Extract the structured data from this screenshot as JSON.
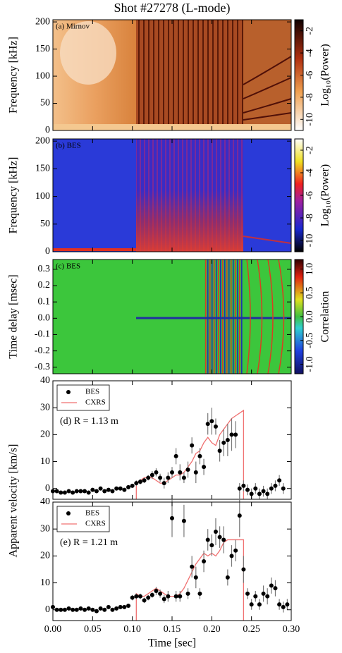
{
  "chart_data": [
    {
      "type": "heatmap",
      "title": "Shot #27278 (L-mode)",
      "label": "(a) Mirnov",
      "ylabel": "Frequency [kHz]",
      "ylim": [
        0,
        204
      ],
      "yticks": [
        0,
        50,
        100,
        150,
        200
      ],
      "colorbar": {
        "label": "Log₁₀(Power)",
        "lim": [
          -11,
          -1
        ],
        "ticks": [
          -10,
          -8,
          -6,
          -4,
          -2
        ]
      }
    },
    {
      "type": "heatmap",
      "label": "(b) BES",
      "ylabel": "Frequency [kHz]",
      "ylim": [
        0,
        204
      ],
      "yticks": [
        0,
        50,
        100,
        150,
        200
      ],
      "colorbar": {
        "label": "Log₁₀(Power)",
        "lim": [
          -11,
          -1
        ],
        "ticks": [
          -10,
          -8,
          -6,
          -4,
          -2
        ]
      }
    },
    {
      "type": "heatmap",
      "label": "(c) BES",
      "ylabel": "Time delay [msec]",
      "ylim": [
        -0.34,
        0.36
      ],
      "yticks": [
        -0.3,
        -0.2,
        -0.1,
        {
          "value": 0,
          "label": "0.0"
        },
        0.1,
        0.2,
        0.3
      ],
      "colorbar": {
        "label": "Correlation",
        "lim": [
          -1.2,
          1.2
        ],
        "ticks": [
          {
            "value": -1,
            "label": "-1.0"
          },
          -0.5,
          {
            "value": 0,
            "label": "0.0"
          },
          0.5,
          {
            "value": 1,
            "label": "1.0"
          }
        ]
      }
    },
    {
      "type": "scatter",
      "ylabel": "Apparent velocity [km/s]",
      "annotation": "(d) R = 1.13 m",
      "ylim": [
        -4,
        40
      ],
      "yticks": [
        0,
        10,
        20,
        30,
        40
      ],
      "series": [
        {
          "name": "BES",
          "color": "#000000",
          "x": [
            0,
            0.005,
            0.01,
            0.015,
            0.02,
            0.025,
            0.03,
            0.035,
            0.04,
            0.045,
            0.05,
            0.055,
            0.06,
            0.065,
            0.07,
            0.075,
            0.08,
            0.085,
            0.09,
            0.095,
            0.1,
            0.105,
            0.11,
            0.115,
            0.12,
            0.125,
            0.13,
            0.135,
            0.14,
            0.145,
            0.15,
            0.155,
            0.16,
            0.165,
            0.17,
            0.175,
            0.18,
            0.185,
            0.19,
            0.195,
            0.2,
            0.205,
            0.21,
            0.215,
            0.22,
            0.225,
            0.23,
            0.235,
            0.24,
            0.245,
            0.25,
            0.255,
            0.26,
            0.265,
            0.27,
            0.275,
            0.28,
            0.285,
            0.29
          ],
          "values": [
            -1,
            -1,
            -1.5,
            -1.5,
            -1,
            -1.5,
            -1,
            -1,
            -1,
            -1.5,
            -0.5,
            -1,
            0,
            -1,
            -0.5,
            -1,
            0,
            0,
            -0.5,
            0.5,
            1,
            2,
            2.5,
            3,
            4,
            5,
            6,
            4,
            2,
            4,
            6,
            12,
            6,
            4,
            7,
            16,
            6,
            12,
            8,
            24,
            25,
            23,
            14,
            17,
            18,
            20,
            20,
            0,
            1,
            -0.5,
            -2,
            0,
            -2,
            -1,
            -2,
            0,
            1,
            3,
            0
          ],
          "errors": [
            0.5,
            0.5,
            0.5,
            0.5,
            0.5,
            0.5,
            0.5,
            0.5,
            0.5,
            0.5,
            0.5,
            0.5,
            0.5,
            0.5,
            0.5,
            0.5,
            0.5,
            0.5,
            0.5,
            0.5,
            0.5,
            1,
            1,
            1,
            1,
            1.5,
            1.5,
            1.5,
            2,
            2,
            2,
            3,
            3,
            2,
            3,
            3,
            4,
            3,
            3,
            4,
            5,
            3,
            4,
            5,
            6,
            6,
            5,
            2,
            2,
            2,
            2,
            2,
            2,
            2,
            2,
            2,
            2,
            2,
            2
          ]
        },
        {
          "name": "CXRS",
          "color": "#f07070",
          "x": [
            0.105,
            0.105,
            0.11,
            0.115,
            0.12,
            0.125,
            0.13,
            0.135,
            0.14,
            0.145,
            0.15,
            0.155,
            0.16,
            0.165,
            0.17,
            0.175,
            0.18,
            0.185,
            0.19,
            0.195,
            0.2,
            0.205,
            0.21,
            0.215,
            0.22,
            0.225,
            0.23,
            0.235,
            0.24,
            0.24
          ],
          "values": [
            -4,
            2,
            3,
            4,
            4,
            4,
            3,
            2,
            2,
            3,
            4,
            5,
            5,
            6,
            8,
            10,
            13,
            14,
            17,
            19,
            17,
            16,
            20,
            22,
            24,
            26,
            27,
            28,
            29,
            -4
          ]
        }
      ]
    },
    {
      "type": "scatter",
      "annotation": "(e) R = 1.21 m",
      "xlabel": "Time [sec]",
      "ylim": [
        -4,
        40
      ],
      "yticks": [
        0,
        10,
        20,
        30,
        40
      ],
      "xlim": [
        0,
        0.3
      ],
      "xticks": [
        {
          "value": 0,
          "label": "0.00"
        },
        {
          "value": 0.05,
          "label": "0.05"
        },
        {
          "value": 0.1,
          "label": "0.10"
        },
        {
          "value": 0.15,
          "label": "0.15"
        },
        {
          "value": 0.2,
          "label": "0.20"
        },
        {
          "value": 0.25,
          "label": "0.25"
        },
        {
          "value": 0.3,
          "label": "0.30"
        }
      ],
      "series": [
        {
          "name": "BES",
          "color": "#000000",
          "x": [
            0,
            0.005,
            0.01,
            0.015,
            0.02,
            0.025,
            0.03,
            0.035,
            0.04,
            0.045,
            0.05,
            0.055,
            0.06,
            0.065,
            0.07,
            0.075,
            0.08,
            0.085,
            0.09,
            0.095,
            0.1,
            0.105,
            0.11,
            0.115,
            0.12,
            0.125,
            0.13,
            0.135,
            0.14,
            0.145,
            0.15,
            0.155,
            0.16,
            0.165,
            0.17,
            0.175,
            0.18,
            0.185,
            0.19,
            0.195,
            0.2,
            0.205,
            0.21,
            0.215,
            0.22,
            0.225,
            0.23,
            0.235,
            0.24,
            0.245,
            0.25,
            0.255,
            0.26,
            0.265,
            0.27,
            0.275,
            0.28,
            0.285,
            0.29,
            0.295
          ],
          "values": [
            1,
            0,
            0,
            0,
            0.5,
            0,
            0,
            0.5,
            0,
            0.5,
            0,
            -0.5,
            0.5,
            0,
            1,
            0,
            0.5,
            1,
            1,
            1.5,
            4.5,
            5,
            5,
            3.5,
            4.5,
            5.5,
            7,
            6,
            4,
            5,
            34,
            5,
            5,
            33,
            6,
            16,
            12,
            6,
            18,
            26,
            24,
            29,
            27,
            26,
            12,
            20,
            22,
            35,
            15,
            6,
            2,
            5,
            2,
            6,
            5,
            9,
            8,
            2,
            1,
            2
          ],
          "errors": [
            0.5,
            0.5,
            0.5,
            0.5,
            0.5,
            0.5,
            0.5,
            0.5,
            0.5,
            0.5,
            0.5,
            0.5,
            0.5,
            0.5,
            0.5,
            0.5,
            0.5,
            0.5,
            0.5,
            0.5,
            1,
            1,
            1,
            1,
            1,
            1,
            1.5,
            1.5,
            1.5,
            2,
            7,
            2,
            2,
            6,
            2,
            4,
            4,
            2,
            4,
            4,
            4,
            5,
            4,
            5,
            3,
            4,
            4,
            8,
            5,
            2,
            2,
            2,
            2,
            3,
            3,
            3,
            3,
            2,
            2,
            2
          ]
        },
        {
          "name": "CXRS",
          "color": "#f07070",
          "x": [
            0.105,
            0.105,
            0.11,
            0.115,
            0.12,
            0.125,
            0.13,
            0.135,
            0.14,
            0.145,
            0.15,
            0.155,
            0.16,
            0.165,
            0.17,
            0.175,
            0.18,
            0.185,
            0.19,
            0.195,
            0.2,
            0.205,
            0.21,
            0.215,
            0.22,
            0.225,
            0.23,
            0.235,
            0.24,
            0.24
          ],
          "values": [
            -4,
            6,
            5,
            5,
            6,
            7,
            8,
            7,
            6,
            5,
            5,
            5,
            6,
            8,
            11,
            14,
            17,
            19,
            21,
            20,
            21,
            20,
            22,
            25,
            26,
            26,
            26,
            26,
            26,
            -4
          ]
        }
      ]
    }
  ]
}
